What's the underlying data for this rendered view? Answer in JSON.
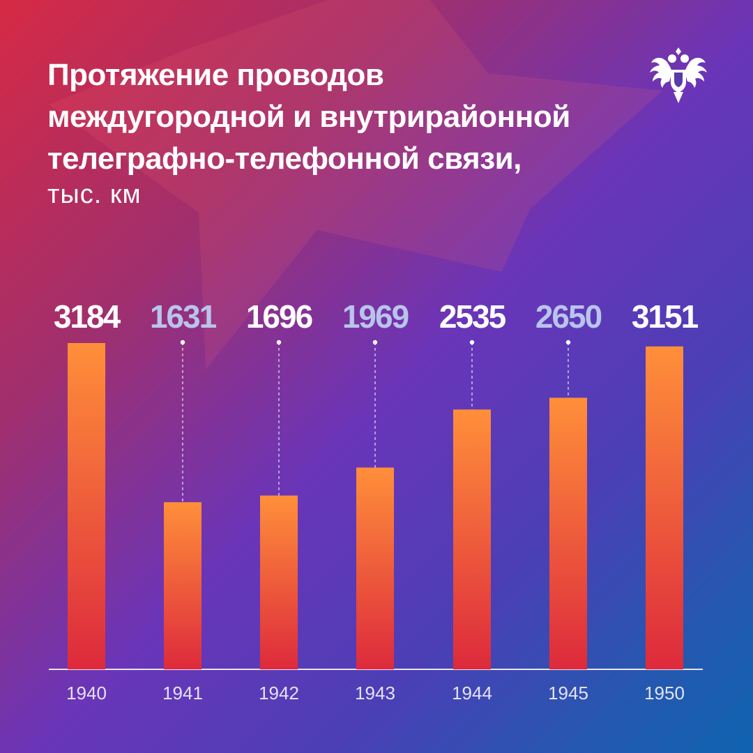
{
  "title_lines": [
    "Протяжение проводов",
    "междугородной и внутрирайонной",
    "телеграфно-телефонной связи,"
  ],
  "unit": "тыс. км",
  "icons": {
    "logo": "double-headed-eagle-emblem-icon",
    "background": "red-star"
  },
  "colors": {
    "bar_top": "#ff8f3a",
    "bar_bottom": "#dd2a3c",
    "label_primary": "#ffffff",
    "label_secondary": "#b9c4ec"
  },
  "chart_data": {
    "type": "bar",
    "categories": [
      "1940",
      "1941",
      "1942",
      "1943",
      "1944",
      "1945",
      "1950"
    ],
    "values": [
      3184,
      1631,
      1696,
      1969,
      2535,
      2650,
      3151
    ],
    "title": "Протяжение проводов междугородной и внутрирайонной телеграфно-телефонной связи,",
    "ylabel": "тыс. км",
    "ylim": [
      0,
      3184
    ],
    "grid": false,
    "legend": "none"
  }
}
